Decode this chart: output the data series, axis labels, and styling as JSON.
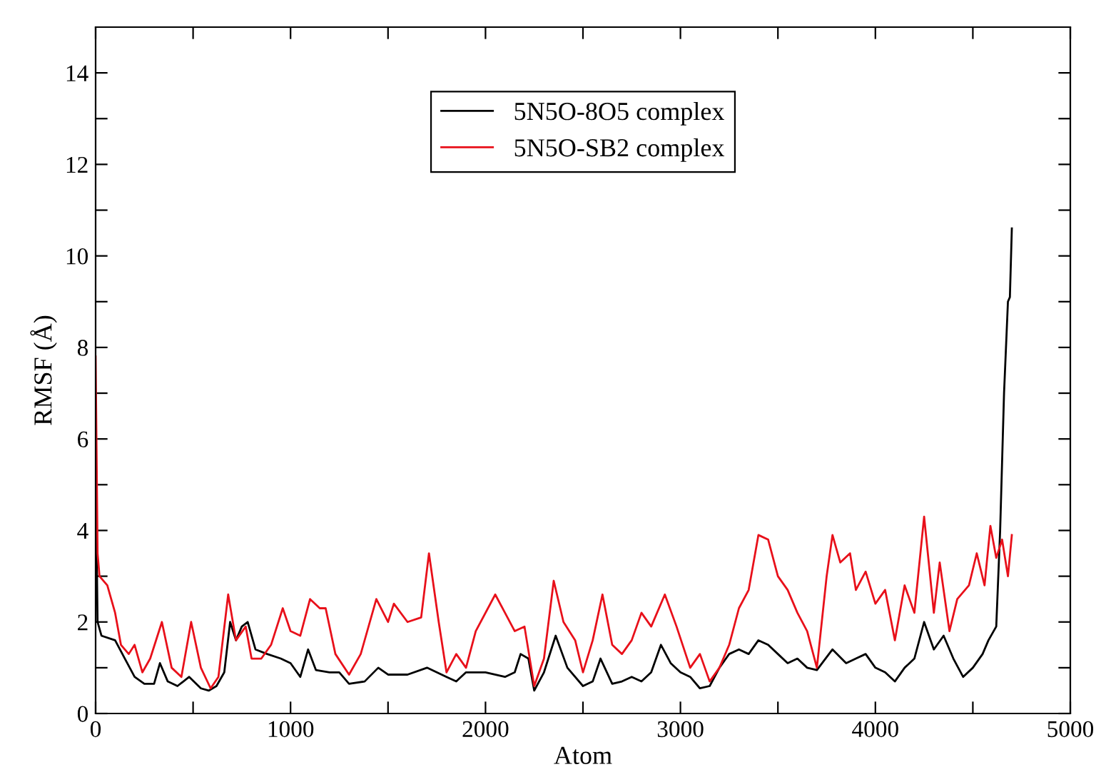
{
  "chart_data": {
    "type": "line",
    "xlabel": "Atom",
    "ylabel": "RMSF (Å)",
    "xlim": [
      0,
      5000
    ],
    "ylim": [
      0,
      15
    ],
    "xticks": [
      0,
      {
        "value": 500,
        "label": null
      },
      1000,
      {
        "value": 1500,
        "label": null
      },
      2000,
      {
        "value": 2500,
        "label": null
      },
      3000,
      {
        "value": 3500,
        "label": null
      },
      4000,
      {
        "value": 4500,
        "label": null
      },
      5000
    ],
    "yticks": [
      0,
      {
        "value": 1,
        "label": null
      },
      2,
      {
        "value": 3,
        "label": null
      },
      4,
      {
        "value": 5,
        "label": null
      },
      6,
      {
        "value": 7,
        "label": null
      },
      8,
      {
        "value": 9,
        "label": null
      },
      10,
      {
        "value": 11,
        "label": null
      },
      12,
      {
        "value": 13,
        "label": null
      },
      14
    ],
    "grid": false,
    "legend": "top",
    "marker": "none",
    "line_style": "solid",
    "series": [
      {
        "name": "5N5O-8O5 complex",
        "color": "#000000",
        "x": [
          0,
          10,
          30,
          100,
          150,
          200,
          250,
          300,
          330,
          370,
          420,
          480,
          540,
          580,
          620,
          660,
          690,
          720,
          750,
          780,
          820,
          880,
          950,
          1000,
          1050,
          1090,
          1130,
          1200,
          1250,
          1300,
          1380,
          1450,
          1500,
          1600,
          1700,
          1800,
          1850,
          1900,
          2000,
          2100,
          2150,
          2180,
          2220,
          2250,
          2300,
          2360,
          2420,
          2500,
          2550,
          2590,
          2650,
          2700,
          2750,
          2800,
          2850,
          2900,
          2950,
          3000,
          3050,
          3100,
          3150,
          3200,
          3250,
          3300,
          3350,
          3400,
          3450,
          3500,
          3550,
          3600,
          3650,
          3700,
          3780,
          3850,
          3900,
          3950,
          4000,
          4050,
          4100,
          4150,
          4200,
          4250,
          4300,
          4350,
          4400,
          4450,
          4500,
          4550,
          4580,
          4620,
          4640,
          4660,
          4680,
          4690,
          4700
        ],
        "values": [
          5.5,
          2.0,
          1.7,
          1.6,
          1.2,
          0.8,
          0.65,
          0.65,
          1.1,
          0.7,
          0.6,
          0.8,
          0.55,
          0.5,
          0.6,
          0.9,
          2.0,
          1.6,
          1.9,
          2.0,
          1.4,
          1.3,
          1.2,
          1.1,
          0.8,
          1.4,
          0.95,
          0.9,
          0.9,
          0.65,
          0.7,
          1.0,
          0.85,
          0.85,
          1.0,
          0.8,
          0.7,
          0.9,
          0.9,
          0.8,
          0.9,
          1.3,
          1.2,
          0.5,
          0.9,
          1.7,
          1.0,
          0.6,
          0.7,
          1.2,
          0.65,
          0.7,
          0.8,
          0.7,
          0.9,
          1.5,
          1.1,
          0.9,
          0.8,
          0.55,
          0.6,
          1.0,
          1.3,
          1.4,
          1.3,
          1.6,
          1.5,
          1.3,
          1.1,
          1.2,
          1.0,
          0.95,
          1.4,
          1.1,
          1.2,
          1.3,
          1.0,
          0.9,
          0.7,
          1.0,
          1.2,
          2.0,
          1.4,
          1.7,
          1.2,
          0.8,
          1.0,
          1.3,
          1.6,
          1.9,
          4.0,
          7.0,
          9.0,
          9.1,
          10.6
        ]
      },
      {
        "name": "5N5O-SB2 complex",
        "color": "#e8101a",
        "x": [
          0,
          10,
          20,
          60,
          100,
          130,
          170,
          200,
          240,
          280,
          340,
          390,
          440,
          490,
          540,
          590,
          630,
          680,
          720,
          770,
          800,
          850,
          900,
          960,
          1000,
          1050,
          1100,
          1150,
          1180,
          1230,
          1300,
          1360,
          1440,
          1500,
          1530,
          1600,
          1670,
          1710,
          1760,
          1800,
          1850,
          1900,
          1950,
          2050,
          2100,
          2150,
          2200,
          2250,
          2300,
          2350,
          2400,
          2460,
          2500,
          2550,
          2600,
          2650,
          2700,
          2750,
          2800,
          2850,
          2920,
          2980,
          3050,
          3100,
          3150,
          3200,
          3250,
          3300,
          3350,
          3400,
          3450,
          3500,
          3550,
          3600,
          3650,
          3700,
          3750,
          3780,
          3820,
          3870,
          3900,
          3950,
          4000,
          4050,
          4100,
          4150,
          4200,
          4250,
          4300,
          4330,
          4380,
          4420,
          4480,
          4520,
          4560,
          4590,
          4620,
          4650,
          4680,
          4700
        ],
        "values": [
          7.8,
          3.5,
          3.0,
          2.8,
          2.2,
          1.5,
          1.3,
          1.5,
          0.9,
          1.2,
          2.0,
          1.0,
          0.8,
          2.0,
          1.0,
          0.55,
          0.8,
          2.6,
          1.6,
          1.9,
          1.2,
          1.2,
          1.5,
          2.3,
          1.8,
          1.7,
          2.5,
          2.3,
          2.3,
          1.3,
          0.85,
          1.3,
          2.5,
          2.0,
          2.4,
          2.0,
          2.1,
          3.5,
          2.0,
          0.9,
          1.3,
          1.0,
          1.8,
          2.6,
          2.2,
          1.8,
          1.9,
          0.6,
          1.2,
          2.9,
          2.0,
          1.6,
          0.9,
          1.6,
          2.6,
          1.5,
          1.3,
          1.6,
          2.2,
          1.9,
          2.6,
          1.9,
          1.0,
          1.3,
          0.7,
          1.0,
          1.5,
          2.3,
          2.7,
          3.9,
          3.8,
          3.0,
          2.7,
          2.2,
          1.8,
          1.0,
          3.0,
          3.9,
          3.3,
          3.5,
          2.7,
          3.1,
          2.4,
          2.7,
          1.6,
          2.8,
          2.2,
          4.3,
          2.2,
          3.3,
          1.8,
          2.5,
          2.8,
          3.5,
          2.8,
          4.1,
          3.4,
          3.8,
          3.0,
          3.9
        ]
      }
    ]
  }
}
